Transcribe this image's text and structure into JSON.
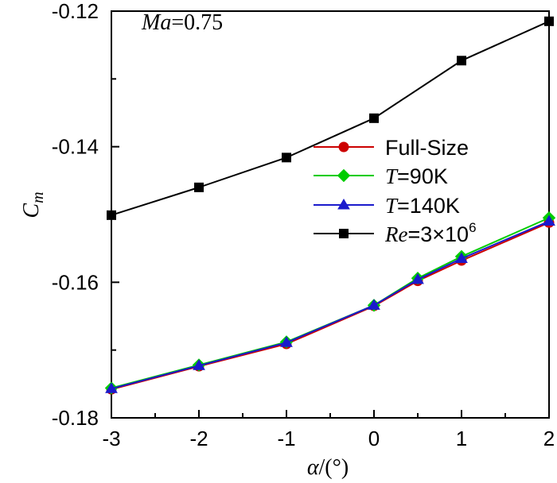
{
  "chart_data": {
    "type": "line",
    "xlabel_parts": {
      "symbol": "α",
      "unit": "/(°)"
    },
    "ylabel_parts": {
      "base": "C",
      "sub": "m"
    },
    "xlim": [
      -3,
      2
    ],
    "ylim": [
      -0.18,
      -0.12
    ],
    "xticks": [
      -3,
      -2,
      -1,
      0,
      1,
      2
    ],
    "xtick_labels": [
      "-3",
      "-2",
      "-1",
      "0",
      "1",
      "2"
    ],
    "yticks": [
      -0.18,
      -0.16,
      -0.14,
      -0.12
    ],
    "ytick_labels": [
      "-0.18",
      "-0.16",
      "-0.14",
      "-0.12"
    ],
    "annotation": {
      "italic": "Ma",
      "rest": "=0.75"
    },
    "legend_placement": "center-right",
    "grid": false,
    "series": [
      {
        "name_parts": {
          "italic": "",
          "rest": "Full-Size",
          "sup": ""
        },
        "color": "#cc0000",
        "marker": "circle",
        "x": [
          -3,
          -2,
          -1,
          0,
          0.5,
          1,
          2
        ],
        "y": [
          -0.1758,
          -0.1724,
          -0.1691,
          -0.1635,
          -0.1598,
          -0.1568,
          -0.1512
        ]
      },
      {
        "name_parts": {
          "italic": "T",
          "rest": "=90K",
          "sup": ""
        },
        "color": "#00cc00",
        "marker": "diamond",
        "x": [
          -3,
          -2,
          -1,
          0,
          0.5,
          1,
          2
        ],
        "y": [
          -0.1756,
          -0.1722,
          -0.1688,
          -0.1634,
          -0.1594,
          -0.1562,
          -0.1505
        ]
      },
      {
        "name_parts": {
          "italic": "T",
          "rest": "=140K",
          "sup": ""
        },
        "color": "#1a1acc",
        "marker": "triangle",
        "x": [
          -3,
          -2,
          -1,
          0,
          0.5,
          1,
          2
        ],
        "y": [
          -0.1757,
          -0.1723,
          -0.1689,
          -0.1634,
          -0.1596,
          -0.1565,
          -0.151
        ]
      },
      {
        "name_parts": {
          "italic": "Re",
          "rest": "=3×10",
          "sup": "6"
        },
        "color": "#000000",
        "marker": "square",
        "x": [
          -3,
          -2,
          -1,
          0,
          1,
          2
        ],
        "y": [
          -0.1501,
          -0.146,
          -0.1416,
          -0.1358,
          -0.1273,
          -0.1215
        ]
      }
    ]
  }
}
